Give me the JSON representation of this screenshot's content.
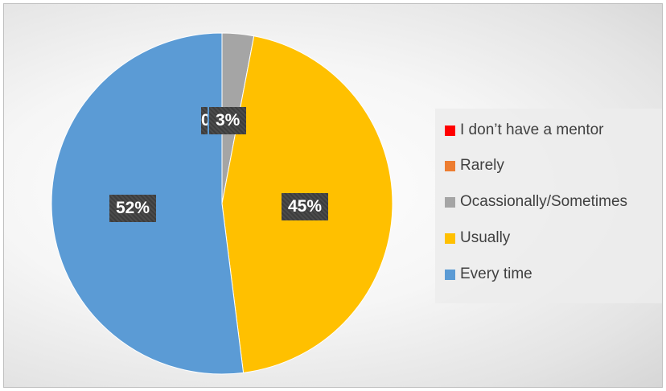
{
  "chart_data": {
    "type": "pie",
    "title": "",
    "slices": [
      {
        "label": "I don’t have a mentor",
        "value": 0,
        "color": "#ff0000"
      },
      {
        "label": "Rarely",
        "value": 0,
        "color": "#ed7d31"
      },
      {
        "label": "Ocassionally/Sometimes",
        "value": 3,
        "color": "#a5a5a5"
      },
      {
        "label": "Usually",
        "value": 45,
        "color": "#ffc000"
      },
      {
        "label": "Every time",
        "value": 52,
        "color": "#5b9bd5"
      }
    ],
    "data_labels": [
      "0",
      "3%",
      "45%",
      "52%"
    ],
    "legend_position": "right"
  }
}
